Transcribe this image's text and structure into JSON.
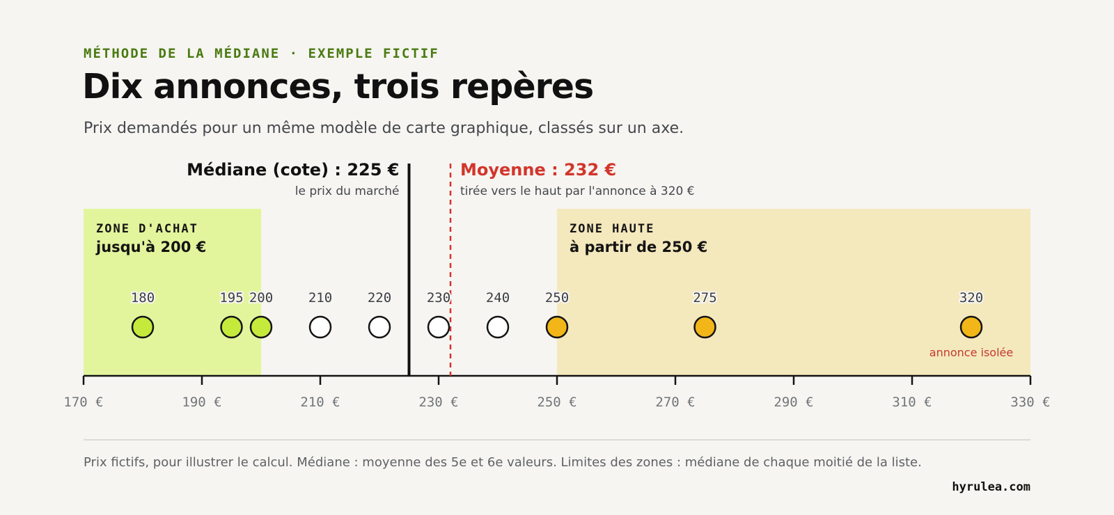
{
  "header": {
    "eyebrow": "MÉTHODE DE LA MÉDIANE · EXEMPLE FICTIF",
    "title": "Dix annonces, trois repères",
    "subtitle": "Prix demandés pour un même modèle de carte graphique, classés sur un axe."
  },
  "chart_data": {
    "type": "scatter",
    "x_axis": {
      "range": [
        170,
        330
      ],
      "ticks": [
        170,
        190,
        210,
        230,
        250,
        270,
        290,
        310,
        330
      ],
      "tick_labels": [
        "170 €",
        "190 €",
        "210 €",
        "230 €",
        "250 €",
        "270 €",
        "290 €",
        "310 €",
        "330 €"
      ]
    },
    "points": [
      {
        "x": 180,
        "label": "180",
        "zone": "achat"
      },
      {
        "x": 195,
        "label": "195",
        "zone": "achat"
      },
      {
        "x": 200,
        "label": "200",
        "zone": "achat"
      },
      {
        "x": 210,
        "label": "210",
        "zone": "milieu"
      },
      {
        "x": 220,
        "label": "220",
        "zone": "milieu"
      },
      {
        "x": 230,
        "label": "230",
        "zone": "milieu"
      },
      {
        "x": 240,
        "label": "240",
        "zone": "milieu"
      },
      {
        "x": 250,
        "label": "250",
        "zone": "haute"
      },
      {
        "x": 275,
        "label": "275",
        "zone": "haute"
      },
      {
        "x": 320,
        "label": "320",
        "zone": "haute",
        "note": "annonce isolée"
      }
    ],
    "zones": [
      {
        "id": "achat",
        "from": 170,
        "to": 200,
        "kicker": "ZONE D'ACHAT",
        "label": "jusqu'à 200 €",
        "color": "#e2f59d"
      },
      {
        "id": "haute",
        "from": 250,
        "to": 330,
        "kicker": "ZONE HAUTE",
        "label": "à partir de 250 €",
        "color": "#f4e8bd"
      }
    ],
    "reference_lines": [
      {
        "id": "mediane",
        "x": 225,
        "label": "Médiane (cote) : 225 €",
        "sublabel": "le prix du marché",
        "color": "#111111",
        "style": "solid"
      },
      {
        "id": "moyenne",
        "x": 232,
        "label": "Moyenne : 232 €",
        "sublabel": "tirée vers le haut par l'annonce à 320 €",
        "color": "#d2352b",
        "style": "dashed"
      }
    ],
    "colors": {
      "achat_point": "#c5ea3c",
      "milieu_point": "#ffffff",
      "haute_point": "#f2b619",
      "point_stroke": "#141414",
      "axis": "#141414",
      "tick_label": "#72757b",
      "point_label": "#3a3d44",
      "isolated_note": "#c53a2f"
    }
  },
  "footer": {
    "note": "Prix fictifs, pour illustrer le calcul. Médiane : moyenne des 5e et 6e valeurs. Limites des zones : médiane de chaque moitié de la liste.",
    "brand": "hyrulea.com"
  }
}
